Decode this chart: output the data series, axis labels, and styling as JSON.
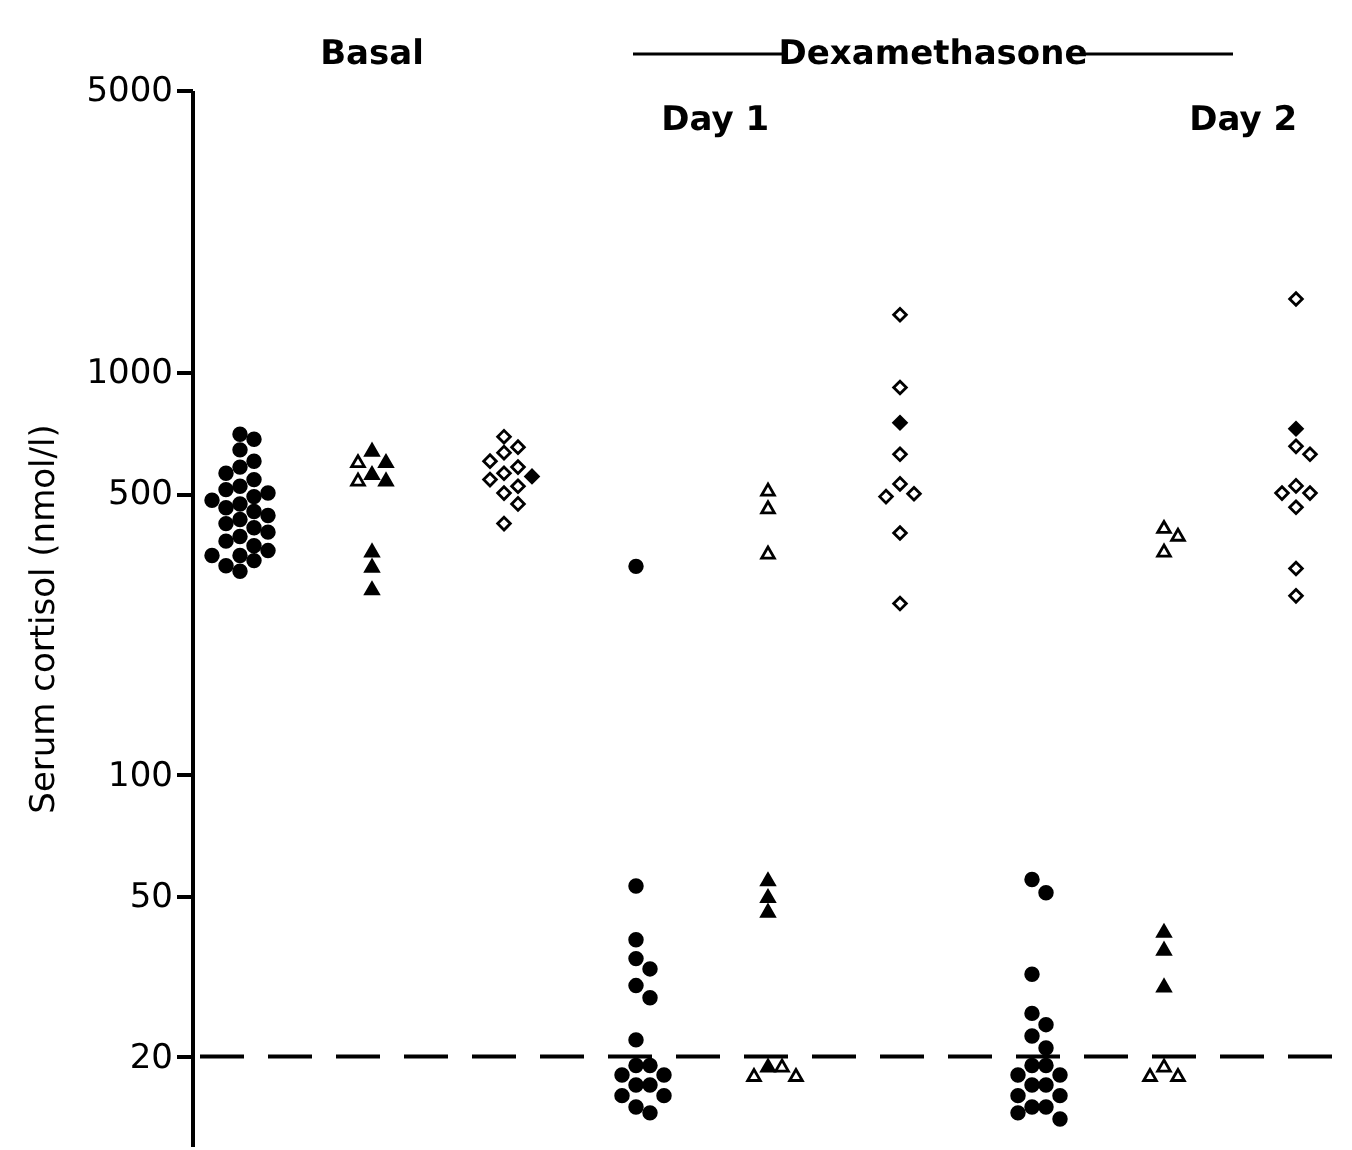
{
  "chart_data": {
    "type": "scatter",
    "ylabel": "Serum cortisol (nmol/l)",
    "annotations": [
      "Basal",
      "Dexamethasone",
      "Day 1",
      "Day 2"
    ],
    "categories": [
      null,
      null,
      null,
      null,
      null,
      null,
      null,
      null,
      null
    ],
    "tick_labels": "y",
    "log": "y",
    "ylim": [
      12,
      5000
    ],
    "yticks": [
      20,
      50,
      100,
      500,
      1000,
      5000
    ],
    "grid": false,
    "ref_lines": [
      {
        "axis": "y",
        "value": 20,
        "line_style": "dashed",
        "color": "#000000"
      }
    ],
    "series": [
      {
        "marker": "circle",
        "color": "#000000",
        "values": [
          700,
          null,
          null,
          329,
          null,
          null,
          55,
          null,
          null
        ]
      },
      {
        "marker": "circle",
        "color": "#000000",
        "values": [
          680,
          null,
          null,
          53,
          null,
          null,
          51,
          null,
          null
        ]
      },
      {
        "marker": "circle",
        "color": "#000000",
        "values": [
          640,
          null,
          null,
          39,
          null,
          null,
          32,
          null,
          null
        ]
      },
      {
        "marker": "circle",
        "color": "#000000",
        "values": [
          600,
          null,
          null,
          35,
          null,
          null,
          25.6,
          null,
          null
        ]
      },
      {
        "marker": "circle",
        "color": "#000000",
        "values": [
          580,
          null,
          null,
          33,
          null,
          null,
          24,
          null,
          null
        ]
      },
      {
        "marker": "circle",
        "color": "#000000",
        "values": [
          560,
          null,
          null,
          30,
          null,
          null,
          22.5,
          null,
          null
        ]
      },
      {
        "marker": "circle",
        "color": "#000000",
        "values": [
          540,
          null,
          null,
          28,
          null,
          null,
          21,
          null,
          null
        ]
      },
      {
        "marker": "circle",
        "color": "#000000",
        "values": [
          520,
          null,
          null,
          22,
          null,
          null,
          19,
          null,
          null
        ]
      },
      {
        "marker": "circle",
        "color": "#000000",
        "values": [
          510,
          null,
          null,
          19,
          null,
          null,
          19,
          null,
          null
        ]
      },
      {
        "marker": "circle",
        "color": "#000000",
        "values": [
          500,
          null,
          null,
          19,
          null,
          null,
          18,
          null,
          null
        ]
      },
      {
        "marker": "circle",
        "color": "#000000",
        "values": [
          490,
          null,
          null,
          18,
          null,
          null,
          18,
          null,
          null
        ]
      },
      {
        "marker": "circle",
        "color": "#000000",
        "values": [
          480,
          null,
          null,
          18,
          null,
          null,
          17,
          null,
          null
        ]
      },
      {
        "marker": "circle",
        "color": "#000000",
        "values": [
          470,
          null,
          null,
          17,
          null,
          null,
          17,
          null,
          null
        ]
      },
      {
        "marker": "circle",
        "color": "#000000",
        "values": [
          460,
          null,
          null,
          17,
          null,
          null,
          16,
          null,
          null
        ]
      },
      {
        "marker": "circle",
        "color": "#000000",
        "values": [
          450,
          null,
          null,
          16,
          null,
          null,
          16,
          null,
          null
        ]
      },
      {
        "marker": "circle",
        "color": "#000000",
        "values": [
          440,
          null,
          null,
          16,
          null,
          null,
          15,
          null,
          null
        ]
      },
      {
        "marker": "circle",
        "color": "#000000",
        "values": [
          430,
          null,
          null,
          15,
          null,
          null,
          15,
          null,
          null
        ]
      },
      {
        "marker": "circle",
        "color": "#000000",
        "values": [
          420,
          null,
          null,
          14.5,
          null,
          null,
          14.5,
          null,
          null
        ]
      },
      {
        "marker": "circle",
        "color": "#000000",
        "values": [
          410,
          null,
          null,
          null,
          null,
          null,
          14,
          null,
          null
        ]
      },
      {
        "marker": "circle",
        "color": "#000000",
        "values": [
          400,
          null,
          null,
          null,
          null,
          null,
          null,
          null,
          null
        ]
      },
      {
        "marker": "circle",
        "color": "#000000",
        "values": [
          390,
          null,
          null,
          null,
          null,
          null,
          null,
          null,
          null
        ]
      },
      {
        "marker": "circle",
        "color": "#000000",
        "values": [
          380,
          null,
          null,
          null,
          null,
          null,
          null,
          null,
          null
        ]
      },
      {
        "marker": "circle",
        "color": "#000000",
        "values": [
          370,
          null,
          null,
          null,
          null,
          null,
          null,
          null,
          null
        ]
      },
      {
        "marker": "circle",
        "color": "#000000",
        "values": [
          360,
          null,
          null,
          null,
          null,
          null,
          null,
          null,
          null
        ]
      },
      {
        "marker": "circle",
        "color": "#000000",
        "values": [
          350,
          null,
          null,
          null,
          null,
          null,
          null,
          null,
          null
        ]
      },
      {
        "marker": "circle",
        "color": "#000000",
        "values": [
          350,
          null,
          null,
          null,
          null,
          null,
          null,
          null,
          null
        ]
      },
      {
        "marker": "circle",
        "color": "#000000",
        "values": [
          340,
          null,
          null,
          null,
          null,
          null,
          null,
          null,
          null
        ]
      },
      {
        "marker": "circle",
        "color": "#000000",
        "values": [
          330,
          null,
          null,
          null,
          null,
          null,
          null,
          null,
          null
        ]
      },
      {
        "marker": "circle",
        "color": "#000000",
        "values": [
          320,
          null,
          null,
          null,
          null,
          null,
          null,
          null,
          null
        ]
      },
      {
        "marker": "triangle",
        "color": "#000000",
        "values": [
          null,
          640,
          null,
          null,
          55,
          null,
          null,
          41,
          null
        ]
      },
      {
        "marker": "triangle",
        "color": "#000000",
        "values": [
          null,
          600,
          null,
          null,
          50,
          null,
          null,
          37,
          null
        ]
      },
      {
        "marker": "triangle",
        "color": "#000000",
        "values": [
          null,
          560,
          null,
          null,
          46,
          null,
          null,
          30,
          null
        ]
      },
      {
        "marker": "triangle",
        "color": "#000000",
        "values": [
          null,
          540,
          null,
          null,
          19,
          null,
          null,
          null,
          null
        ]
      },
      {
        "marker": "triangle",
        "color": "#000000",
        "values": [
          null,
          360,
          null,
          null,
          null,
          null,
          null,
          null,
          null
        ]
      },
      {
        "marker": "triangle",
        "color": "#000000",
        "values": [
          null,
          330,
          null,
          null,
          null,
          null,
          null,
          null,
          null
        ]
      },
      {
        "marker": "triangle",
        "color": "#000000",
        "values": [
          null,
          290,
          null,
          null,
          null,
          null,
          null,
          null,
          null
        ]
      },
      {
        "marker": "triangle",
        "color": "#ffffff",
        "values": [
          null,
          600,
          null,
          null,
          510,
          null,
          null,
          412,
          null
        ]
      },
      {
        "marker": "triangle",
        "color": "#ffffff",
        "values": [
          null,
          540,
          null,
          null,
          461,
          null,
          null,
          394,
          null
        ]
      },
      {
        "marker": "triangle",
        "color": "#ffffff",
        "values": [
          null,
          null,
          null,
          null,
          356,
          null,
          null,
          360,
          null
        ]
      },
      {
        "marker": "triangle",
        "color": "#ffffff",
        "values": [
          null,
          null,
          null,
          null,
          19,
          null,
          null,
          19,
          null
        ]
      },
      {
        "marker": "triangle",
        "color": "#ffffff",
        "values": [
          null,
          null,
          null,
          null,
          18,
          null,
          null,
          18,
          null
        ]
      },
      {
        "marker": "triangle",
        "color": "#ffffff",
        "values": [
          null,
          null,
          null,
          null,
          18,
          null,
          null,
          18,
          null
        ]
      },
      {
        "marker": "diamond",
        "color": "#ffffff",
        "values": [
          null,
          null,
          690,
          null,
          null,
          1385,
          null,
          null,
          1515
        ]
      },
      {
        "marker": "diamond",
        "color": "#ffffff",
        "values": [
          null,
          null,
          650,
          null,
          null,
          914,
          null,
          null,
          653
        ]
      },
      {
        "marker": "diamond",
        "color": "#ffffff",
        "values": [
          null,
          null,
          630,
          null,
          null,
          624,
          null,
          null,
          624
        ]
      },
      {
        "marker": "diamond",
        "color": "#ffffff",
        "values": [
          null,
          null,
          600,
          null,
          null,
          527,
          null,
          null,
          521
        ]
      },
      {
        "marker": "diamond",
        "color": "#ffffff",
        "values": [
          null,
          null,
          580,
          null,
          null,
          498,
          null,
          null,
          500
        ]
      },
      {
        "marker": "diamond",
        "color": "#ffffff",
        "values": [
          null,
          null,
          560,
          null,
          null,
          490,
          null,
          null,
          500
        ]
      },
      {
        "marker": "diamond",
        "color": "#ffffff",
        "values": [
          null,
          null,
          540,
          null,
          null,
          398,
          null,
          null,
          461
        ]
      },
      {
        "marker": "diamond",
        "color": "#ffffff",
        "values": [
          null,
          null,
          520,
          null,
          null,
          266,
          null,
          null,
          325
        ]
      },
      {
        "marker": "diamond",
        "color": "#ffffff",
        "values": [
          null,
          null,
          500,
          null,
          null,
          null,
          null,
          null,
          278
        ]
      },
      {
        "marker": "diamond",
        "color": "#ffffff",
        "values": [
          null,
          null,
          470,
          null,
          null,
          null,
          null,
          null,
          null
        ]
      },
      {
        "marker": "diamond",
        "color": "#ffffff",
        "values": [
          null,
          null,
          420,
          null,
          null,
          null,
          null,
          null,
          null
        ]
      },
      {
        "marker": "diamond",
        "color": "#000000",
        "values": [
          null,
          null,
          550,
          null,
          null,
          747,
          null,
          null,
          722
        ]
      }
    ]
  }
}
